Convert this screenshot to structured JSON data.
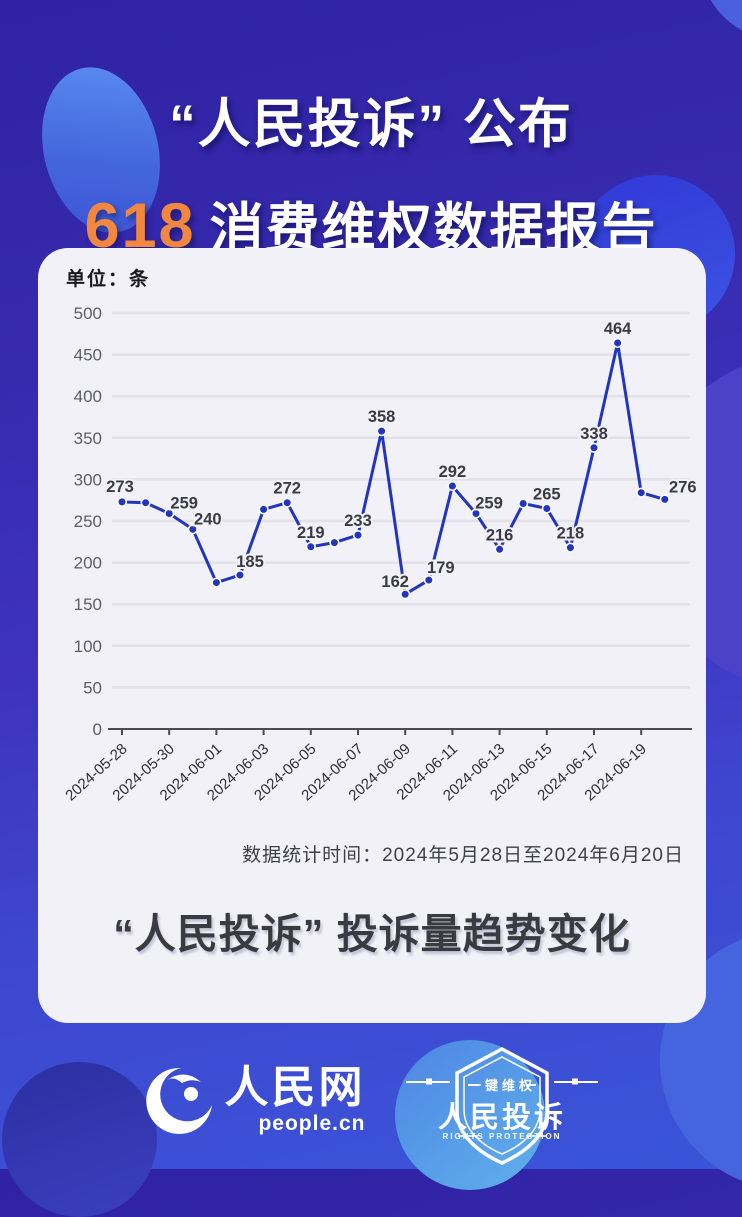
{
  "header": {
    "title_line1": "“人民投诉” 公布",
    "title_line2_highlight": "618",
    "title_line2_rest": "消费维权数据报告"
  },
  "chart_card": {
    "unit_label": "单位：条",
    "stats_period": "数据统计时间：2024年5月28日至2024年6月20日",
    "card_title": "“人民投诉” 投诉量趋势变化"
  },
  "chart_data": {
    "type": "line",
    "title": "“人民投诉” 投诉量趋势变化",
    "unit": "条",
    "x": [
      "2024-05-28",
      "2024-05-29",
      "2024-05-30",
      "2024-05-31",
      "2024-06-01",
      "2024-06-02",
      "2024-06-03",
      "2024-06-04",
      "2024-06-05",
      "2024-06-06",
      "2024-06-07",
      "2024-06-08",
      "2024-06-09",
      "2024-06-10",
      "2024-06-11",
      "2024-06-12",
      "2024-06-13",
      "2024-06-14",
      "2024-06-15",
      "2024-06-16",
      "2024-06-17",
      "2024-06-18",
      "2024-06-19",
      "2024-06-20"
    ],
    "values": [
      273,
      272,
      259,
      240,
      176,
      185,
      264,
      272,
      219,
      224,
      233,
      358,
      162,
      179,
      292,
      259,
      216,
      271,
      265,
      218,
      338,
      464,
      284,
      276
    ],
    "point_labels": [
      "273",
      null,
      "259",
      "240",
      null,
      "185",
      null,
      "272",
      "219",
      null,
      "233",
      "358",
      "162",
      "179",
      "292",
      "259",
      "216",
      null,
      "265",
      "218",
      "338",
      "464",
      null,
      "276"
    ],
    "x_tick_every": 2,
    "y_ticks": [
      0,
      50,
      100,
      150,
      200,
      250,
      300,
      350,
      400,
      450,
      500
    ],
    "ylim": [
      0,
      500
    ],
    "grid": true,
    "legend": "none",
    "line_color": "#2135c0"
  },
  "footer": {
    "people_logo_text": "人民网",
    "people_logo_sub": "people.cn",
    "badge_top": "一键维权",
    "badge_main": "人民投诉",
    "badge_sub": "RIGHTS PROTECTION"
  },
  "colors": {
    "accent_orange": "#f2883f",
    "line_blue": "#2135c0",
    "card_bg": "#f2f1f8",
    "grid_gray": "#e2e1e9",
    "bg_indigo": "#362aae",
    "bg_blue": "#3a55d9"
  }
}
